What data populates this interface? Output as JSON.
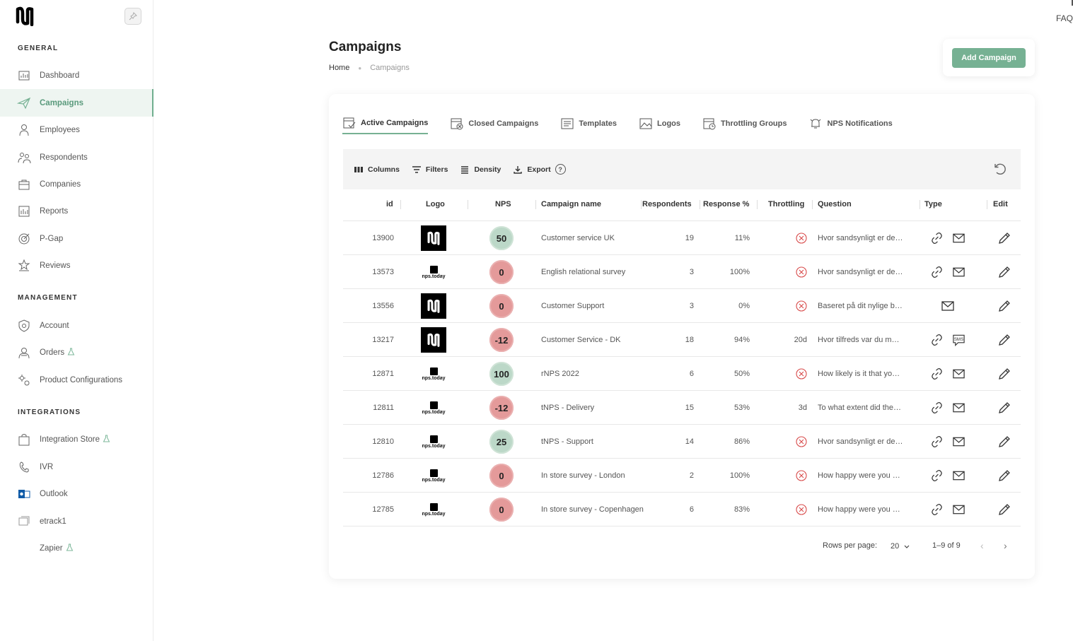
{
  "sidebar": {
    "sections": {
      "general": "GENERAL",
      "management": "MANAGEMENT",
      "integrations": "INTEGRATIONS"
    },
    "items": [
      {
        "label": "Dashboard",
        "icon": "dashboard-icon"
      },
      {
        "label": "Campaigns",
        "icon": "paper-plane-icon",
        "active": true
      },
      {
        "label": "Employees",
        "icon": "employee-icon"
      },
      {
        "label": "Respondents",
        "icon": "respondents-icon"
      },
      {
        "label": "Companies",
        "icon": "briefcase-icon"
      },
      {
        "label": "Reports",
        "icon": "report-icon"
      },
      {
        "label": "P-Gap",
        "icon": "target-icon"
      },
      {
        "label": "Reviews",
        "icon": "stars-icon"
      },
      {
        "label": "Account",
        "icon": "shield-gear-icon"
      },
      {
        "label": "Orders",
        "icon": "orders-icon",
        "beta": true
      },
      {
        "label": "Product Configurations",
        "icon": "gears-icon"
      },
      {
        "label": "Integration Store",
        "icon": "bag-icon",
        "beta": true
      },
      {
        "label": "IVR",
        "icon": "phone-icon"
      },
      {
        "label": "Outlook",
        "icon": "outlook-icon"
      },
      {
        "label": "etrack1",
        "icon": "etrack-icon"
      },
      {
        "label": "Zapier",
        "icon": "",
        "beta": true
      }
    ]
  },
  "faq": "FAQ",
  "header": {
    "title": "Campaigns",
    "breadcrumb_home": "Home",
    "breadcrumb_current": "Campaigns",
    "add_button": "Add Campaign"
  },
  "tabs": [
    {
      "label": "Active Campaigns",
      "active": true
    },
    {
      "label": "Closed Campaigns"
    },
    {
      "label": "Templates"
    },
    {
      "label": "Logos"
    },
    {
      "label": "Throttling Groups"
    },
    {
      "label": "NPS Notifications"
    }
  ],
  "toolbar": {
    "columns": "Columns",
    "filters": "Filters",
    "density": "Density",
    "export": "Export",
    "help": "?"
  },
  "table": {
    "headers": {
      "id": "id",
      "logo": "Logo",
      "nps": "NPS",
      "name": "Campaign name",
      "respondents": "Respondents",
      "response": "Response %",
      "throttling": "Throttling",
      "question": "Question",
      "type": "Type",
      "edit": "Edit"
    },
    "rows": [
      {
        "id": "13900",
        "logo": "brand",
        "nps": "50",
        "nps_status": "pos",
        "name": "Customer service UK",
        "respondents": "19",
        "response": "11%",
        "throttling": "",
        "question": "Hvor sandsynligt er de…",
        "types": [
          "link",
          "email"
        ]
      },
      {
        "id": "13573",
        "logo": "npstoday",
        "nps": "0",
        "nps_status": "neg",
        "name": "English relational survey",
        "respondents": "3",
        "response": "100%",
        "throttling": "",
        "question": "Hvor sandsynligt er de…",
        "types": [
          "link",
          "email"
        ]
      },
      {
        "id": "13556",
        "logo": "brand",
        "nps": "0",
        "nps_status": "neg",
        "name": "Customer Support",
        "respondents": "3",
        "response": "0%",
        "throttling": "",
        "question": "Baseret på dit nylige b…",
        "types": [
          "email"
        ]
      },
      {
        "id": "13217",
        "logo": "brand",
        "nps": "-12",
        "nps_status": "neg",
        "name": "Customer Service - DK",
        "respondents": "18",
        "response": "94%",
        "throttling": "20d",
        "question": "Hvor tilfreds var du m…",
        "types": [
          "link",
          "sms"
        ]
      },
      {
        "id": "12871",
        "logo": "npstoday",
        "nps": "100",
        "nps_status": "pos",
        "name": "rNPS 2022",
        "respondents": "6",
        "response": "50%",
        "throttling": "",
        "question": "How likely is it that yo…",
        "types": [
          "link",
          "email"
        ]
      },
      {
        "id": "12811",
        "logo": "npstoday",
        "nps": "-12",
        "nps_status": "neg",
        "name": "tNPS - Delivery",
        "respondents": "15",
        "response": "53%",
        "throttling": "3d",
        "question": "To what extent did the…",
        "types": [
          "link",
          "email"
        ]
      },
      {
        "id": "12810",
        "logo": "npstoday",
        "nps": "25",
        "nps_status": "pos",
        "name": "tNPS - Support",
        "respondents": "14",
        "response": "86%",
        "throttling": "",
        "question": "Hvor sandsynligt er de…",
        "types": [
          "link",
          "email"
        ]
      },
      {
        "id": "12786",
        "logo": "npstoday",
        "nps": "0",
        "nps_status": "neg",
        "name": "In store survey - London",
        "respondents": "2",
        "response": "100%",
        "throttling": "",
        "question": "How happy were you …",
        "types": [
          "link",
          "email"
        ]
      },
      {
        "id": "12785",
        "logo": "npstoday",
        "nps": "0",
        "nps_status": "neg",
        "name": "In store survey - Copenhagen",
        "respondents": "6",
        "response": "83%",
        "throttling": "",
        "question": "How happy were you …",
        "types": [
          "link",
          "email"
        ]
      }
    ],
    "logo_text": "nps.today",
    "sms_text": "SMS"
  },
  "pagination": {
    "rows_per_page_label": "Rows per page:",
    "rows_per_page_value": "20",
    "range": "1–9 of 9"
  },
  "colors": {
    "accent": "#76b193",
    "positive": "#bcd8c8",
    "negative": "#e49a9a",
    "error": "#d84a4a"
  }
}
